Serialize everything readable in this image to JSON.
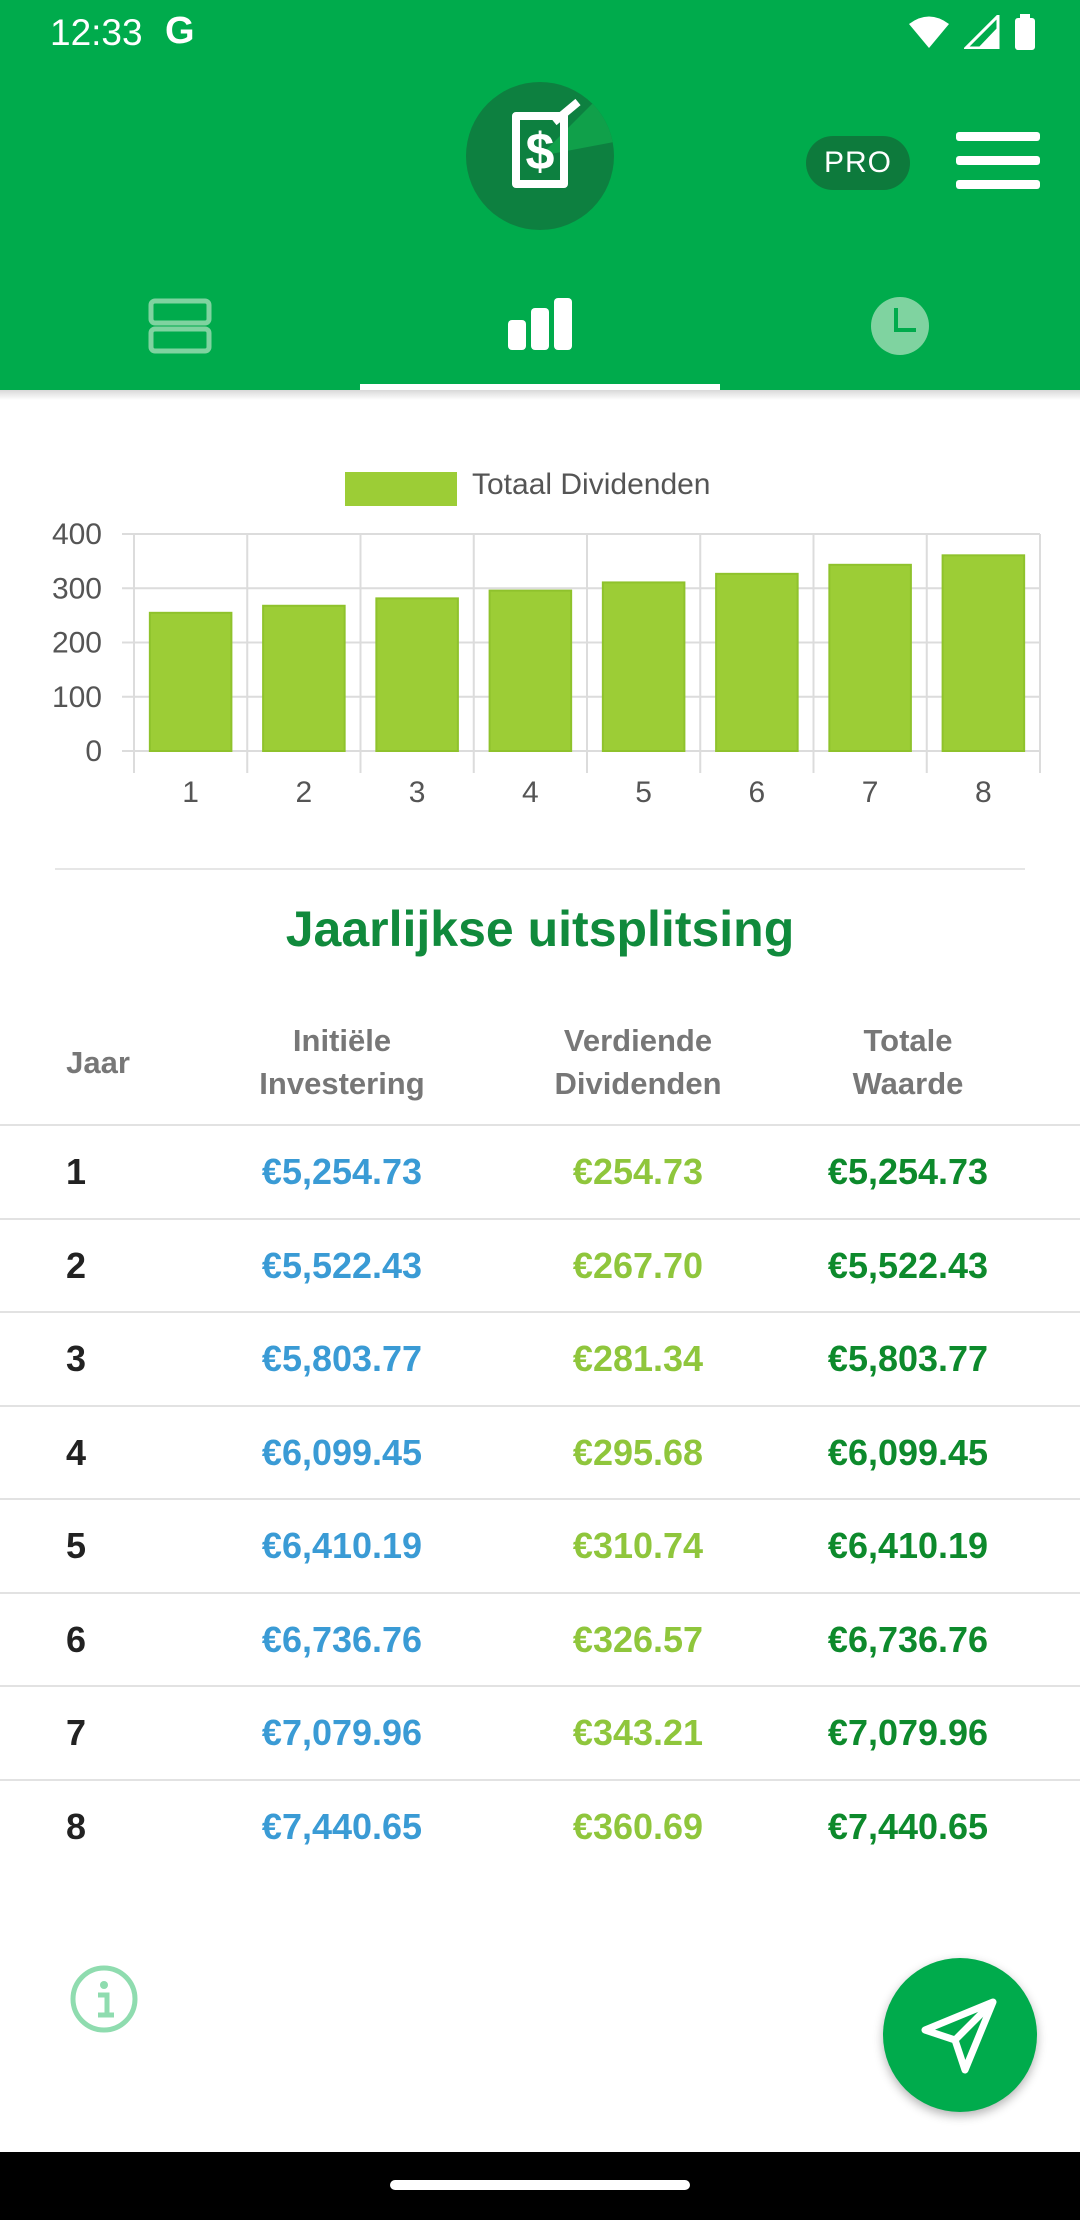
{
  "status_bar": {
    "time": "12:33",
    "app_glyph": "G",
    "icons": [
      "wifi-icon",
      "signal-icon",
      "battery-icon"
    ]
  },
  "header": {
    "logo_icon": "dollar-document-icon",
    "pro_label": "PRO",
    "menu_icon": "hamburger-menu-icon",
    "tabs": [
      {
        "icon": "list-rows-icon",
        "selected": false
      },
      {
        "icon": "bar-chart-icon",
        "selected": true
      },
      {
        "icon": "clock-icon",
        "selected": false
      }
    ]
  },
  "chart_data": {
    "type": "bar",
    "legend": "Totaal Dividenden",
    "legend_placement": "top-center",
    "categories": [
      "1",
      "2",
      "3",
      "4",
      "5",
      "6",
      "7",
      "8"
    ],
    "values": [
      254.73,
      267.7,
      281.34,
      295.68,
      310.74,
      326.57,
      343.21,
      360.69
    ],
    "y_ticks": [
      "0",
      "100",
      "200",
      "300",
      "400"
    ],
    "ylim": [
      0,
      400
    ],
    "grid": true,
    "bar_color": "#9ccd36"
  },
  "breakdown": {
    "title": "Jaarlijkse uitsplitsing",
    "columns": {
      "year": "Jaar",
      "initial_line1": "Initiële",
      "initial_line2": "Investering",
      "earned_line1": "Verdiende",
      "earned_line2": "Dividenden",
      "total_line1": "Totale",
      "total_line2": "Waarde"
    },
    "rows": [
      {
        "year": "1",
        "initial": "€5,254.73",
        "dividends": "€254.73",
        "total": "€5,254.73"
      },
      {
        "year": "2",
        "initial": "€5,522.43",
        "dividends": "€267.70",
        "total": "€5,522.43"
      },
      {
        "year": "3",
        "initial": "€5,803.77",
        "dividends": "€281.34",
        "total": "€5,803.77"
      },
      {
        "year": "4",
        "initial": "€6,099.45",
        "dividends": "€295.68",
        "total": "€6,099.45"
      },
      {
        "year": "5",
        "initial": "€6,410.19",
        "dividends": "€310.74",
        "total": "€6,410.19"
      },
      {
        "year": "6",
        "initial": "€6,736.76",
        "dividends": "€326.57",
        "total": "€6,736.76"
      },
      {
        "year": "7",
        "initial": "€7,079.96",
        "dividends": "€343.21",
        "total": "€7,079.96"
      },
      {
        "year": "8",
        "initial": "€7,440.65",
        "dividends": "€360.69",
        "total": "€7,440.65"
      }
    ]
  },
  "footer": {
    "info_icon": "info-icon",
    "fab_icon": "send-icon"
  },
  "colors": {
    "brand": "#00ab4c",
    "initial": "#3a9bd5",
    "dividends": "#8fc63c",
    "total": "#0d8a2c"
  }
}
